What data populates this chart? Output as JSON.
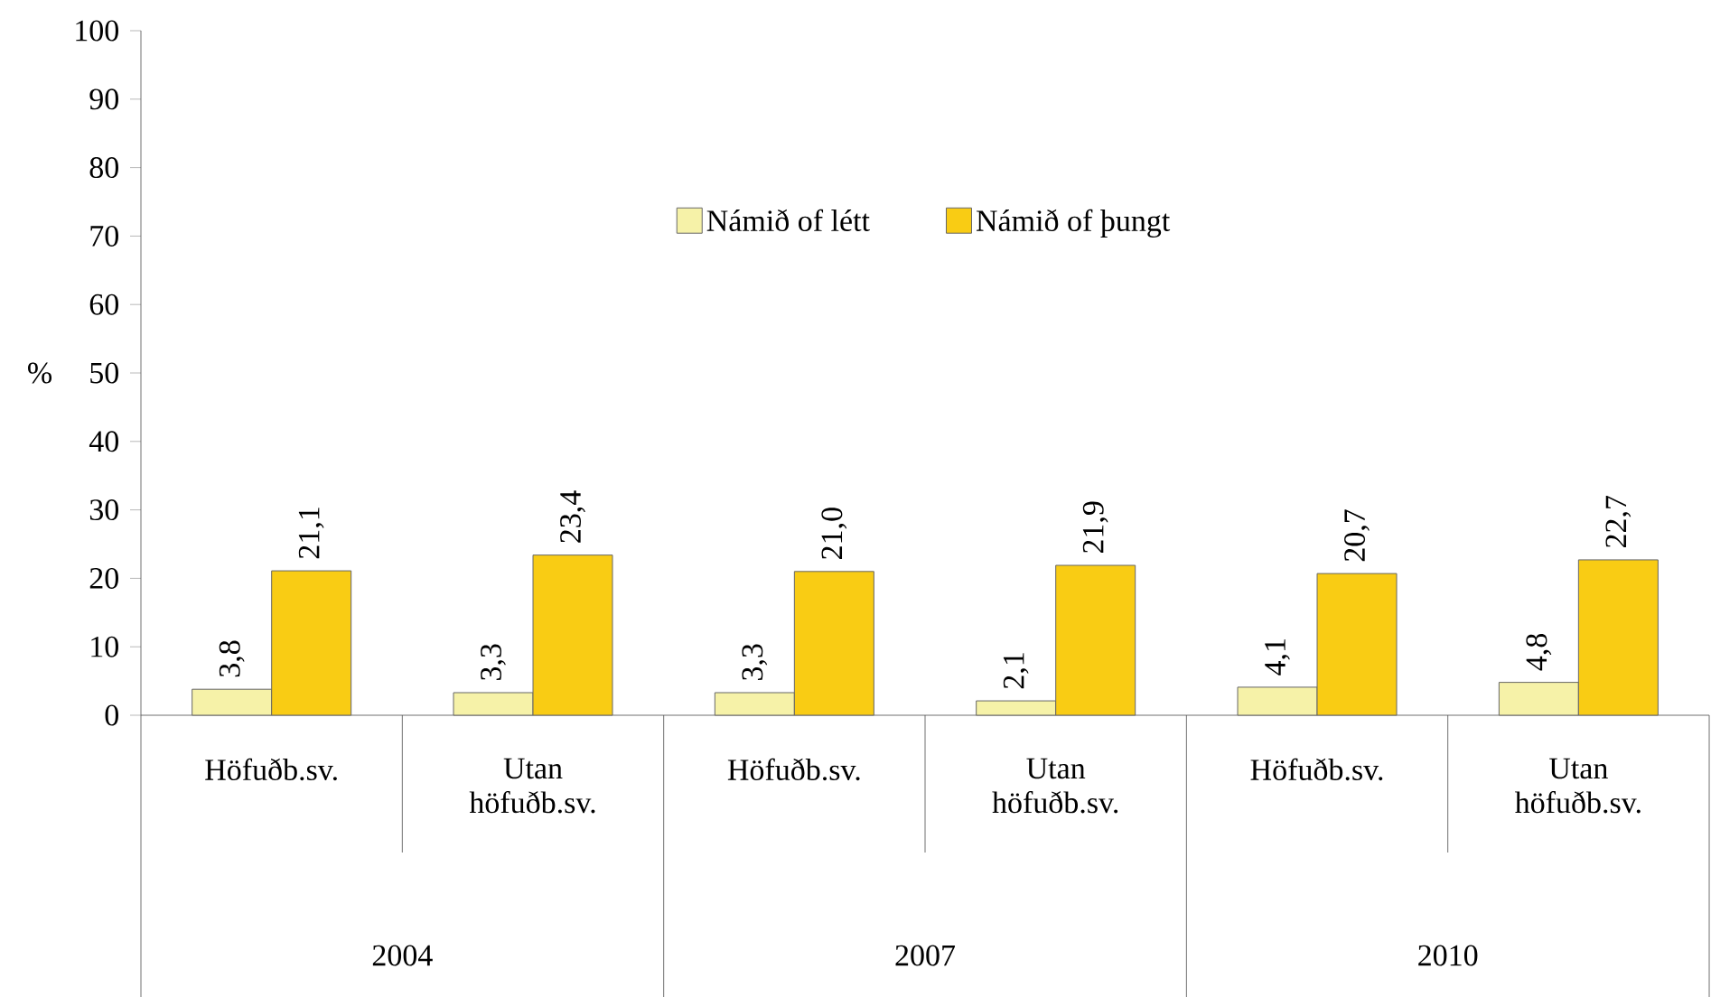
{
  "chart_data": {
    "type": "bar",
    "ylabel": "%",
    "categories": [
      "Höfuðb.sv.",
      "Utan höfuðb.sv.",
      "Höfuðb.sv.",
      "Utan höfuðb.sv.",
      "Höfuðb.sv.",
      "Utan höfuðb.sv."
    ],
    "annotations": [
      "2004",
      "2007",
      "2010"
    ],
    "series": [
      {
        "name": "Námið of létt",
        "color": "#f6f2a8",
        "values": [
          3.8,
          3.3,
          3.3,
          2.1,
          4.1,
          4.8
        ],
        "value_labels": [
          "3,8",
          "3,3",
          "3,3",
          "2,1",
          "4,1",
          "4,8"
        ]
      },
      {
        "name": "Námið of þungt",
        "color": "#f9cc14",
        "values": [
          21.1,
          23.4,
          21.0,
          21.9,
          20.7,
          22.7
        ],
        "value_labels": [
          "21,1",
          "23,4",
          "21,0",
          "21,9",
          "20,7",
          "22,7"
        ]
      }
    ],
    "ylim": [
      0,
      100
    ],
    "yticks": [
      0,
      10,
      20,
      30,
      40,
      50,
      60,
      70,
      80,
      90,
      100
    ],
    "legend": "top"
  }
}
